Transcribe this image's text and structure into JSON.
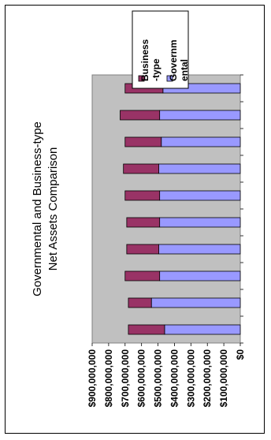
{
  "chart_data": {
    "type": "bar",
    "orientation": "horizontal-stacked",
    "title_lines": [
      "Governmental and Business-type",
      "Net Assets Comparison"
    ],
    "categories": [
      "",
      "",
      "",
      "",
      "",
      "",
      "",
      "",
      "",
      ""
    ],
    "series": [
      {
        "name": "Governmental",
        "legend_lines": [
          "Governm",
          "ental"
        ],
        "color": "#9999ff",
        "values": [
          460000000,
          540000000,
          490000000,
          495000000,
          490000000,
          490000000,
          495000000,
          480000000,
          490000000,
          470000000
        ]
      },
      {
        "name": "Business-type",
        "legend_lines": [
          "Business",
          "-type"
        ],
        "color": "#993366",
        "values": [
          220000000,
          140000000,
          210000000,
          195000000,
          200000000,
          210000000,
          215000000,
          220000000,
          240000000,
          230000000
        ]
      }
    ],
    "value_ticks": [
      "$0",
      "$100,000,000",
      "$200,000,000",
      "$300,000,000",
      "$400,000,000",
      "$500,000,000",
      "$600,000,000",
      "$700,000,000",
      "$800,000,000",
      "$900,000,000"
    ],
    "ylim": [
      0,
      900000000
    ],
    "grid": false,
    "legend_position": "top-right"
  }
}
